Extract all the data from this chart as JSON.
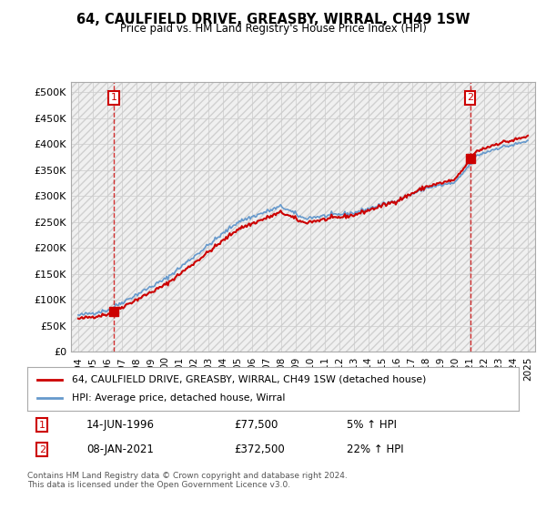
{
  "title": "64, CAULFIELD DRIVE, GREASBY, WIRRAL, CH49 1SW",
  "subtitle": "Price paid vs. HM Land Registry's House Price Index (HPI)",
  "legend_line1": "64, CAULFIELD DRIVE, GREASBY, WIRRAL, CH49 1SW (detached house)",
  "legend_line2": "HPI: Average price, detached house, Wirral",
  "annotation1_label": "1",
  "annotation1_date": "14-JUN-1996",
  "annotation1_price": "£77,500",
  "annotation1_hpi": "5% ↑ HPI",
  "annotation2_label": "2",
  "annotation2_date": "08-JAN-2021",
  "annotation2_price": "£372,500",
  "annotation2_hpi": "22% ↑ HPI",
  "footer": "Contains HM Land Registry data © Crown copyright and database right 2024.\nThis data is licensed under the Open Government Licence v3.0.",
  "price_color": "#cc0000",
  "hpi_color": "#6699cc",
  "sale1_x": 1996.45,
  "sale1_y": 77500,
  "sale2_x": 2021.02,
  "sale2_y": 372500,
  "ylim": [
    0,
    520000
  ],
  "xlim": [
    1993.5,
    2025.5
  ],
  "yticks": [
    0,
    50000,
    100000,
    150000,
    200000,
    250000,
    300000,
    350000,
    400000,
    450000,
    500000
  ],
  "ytick_labels": [
    "£0",
    "£50K",
    "£100K",
    "£150K",
    "£200K",
    "£250K",
    "£300K",
    "£350K",
    "£400K",
    "£450K",
    "£500K"
  ],
  "xticks": [
    1994,
    1995,
    1996,
    1997,
    1998,
    1999,
    2000,
    2001,
    2002,
    2003,
    2004,
    2005,
    2006,
    2007,
    2008,
    2009,
    2010,
    2011,
    2012,
    2013,
    2014,
    2015,
    2016,
    2017,
    2018,
    2019,
    2020,
    2021,
    2022,
    2023,
    2024,
    2025
  ],
  "background_color": "#ffffff",
  "grid_color": "#cccccc",
  "hatch_color": "#e8e8e8"
}
